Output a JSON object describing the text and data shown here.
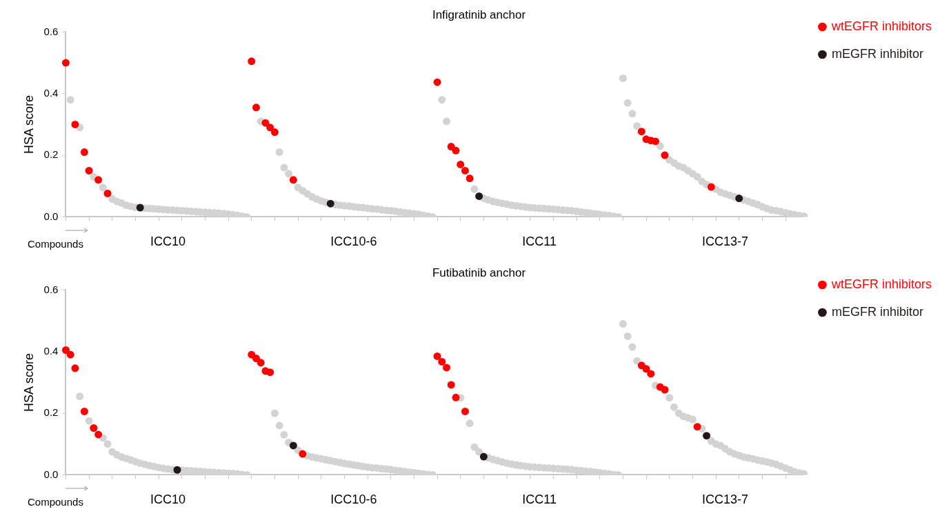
{
  "chart_data": [
    {
      "type": "scatter",
      "title": "Infigratinib anchor",
      "xlabel": "Compounds",
      "ylabel": "HSA score",
      "ylim": [
        0,
        0.6
      ],
      "categories": [
        null,
        null,
        null,
        null,
        null,
        null,
        null,
        null,
        null,
        null,
        null,
        null,
        null,
        null,
        null,
        null,
        null,
        null,
        null,
        null,
        null,
        null,
        "ICC10",
        null,
        null,
        null,
        null,
        null,
        null,
        null,
        null,
        null,
        null,
        null,
        null,
        null,
        null,
        null,
        null,
        null,
        null,
        null,
        null,
        null,
        null,
        null,
        null,
        null,
        null,
        null,
        null,
        null,
        null,
        null,
        null,
        null,
        null,
        null,
        null,
        null,
        null,
        null,
        "ICC10-6",
        null,
        null,
        null,
        null,
        null,
        null,
        null,
        null,
        null,
        null,
        null,
        null,
        null,
        null,
        null,
        null,
        null,
        null,
        null,
        null,
        null,
        null,
        null,
        null,
        null,
        null,
        null,
        null,
        null,
        null,
        null,
        null,
        null,
        null,
        null,
        null,
        null,
        null,
        null,
        "ICC11",
        null,
        null,
        null,
        null,
        null,
        null,
        null,
        null,
        null,
        null,
        null,
        null,
        null,
        null,
        null,
        null,
        null,
        null,
        null,
        null,
        null,
        null,
        null,
        null,
        null,
        null,
        null,
        null,
        null,
        null,
        null,
        null,
        null,
        null,
        null,
        null,
        null,
        null,
        null,
        "ICC13-7",
        null,
        null,
        null,
        null,
        null,
        null,
        null,
        null,
        null,
        null,
        null,
        null,
        null,
        null,
        null,
        null,
        null
      ],
      "yticks": [
        {
          "value": 0,
          "label": "0.0"
        },
        0.2,
        0.4,
        0.6
      ],
      "grid": false,
      "legend": "top right",
      "marker": "circle",
      "series": [
        {
          "color": "#d3d3d3",
          "values": [
            null,
            0.38,
            null,
            0.29,
            null,
            null,
            0.13,
            null,
            0.095,
            null,
            0.058,
            0.05,
            0.045,
            0.038,
            0.034,
            0.031,
            null,
            0.028,
            0.027,
            0.026,
            0.025,
            0.024,
            0.023,
            0.022,
            0.021,
            0.02,
            0.019,
            0.018,
            0.017,
            0.016,
            0.015,
            0.014,
            0.013,
            0.012,
            0.011,
            0.009,
            0.007,
            0.005,
            0.002,
            0,
            null,
            null,
            0.31,
            null,
            null,
            null,
            0.21,
            0.16,
            0.14,
            null,
            0.095,
            0.085,
            0.075,
            0.065,
            0.058,
            0.052,
            0.047,
            null,
            0.04,
            0.038,
            0.036,
            0.035,
            0.033,
            0.031,
            0.03,
            0.028,
            0.026,
            0.025,
            0.023,
            0.021,
            0.02,
            0.018,
            0.016,
            0.014,
            0.012,
            0.01,
            0.008,
            0.005,
            0.002,
            0,
            null,
            0.38,
            0.31,
            null,
            null,
            null,
            null,
            null,
            0.09,
            null,
            0.06,
            0.055,
            0.05,
            0.047,
            0.044,
            0.041,
            0.038,
            0.036,
            0.034,
            0.032,
            0.03,
            0.029,
            0.028,
            0.027,
            0.026,
            0.025,
            0.024,
            0.022,
            0.021,
            0.02,
            0.018,
            0.016,
            0.014,
            0.012,
            0.01,
            0.008,
            0.006,
            0.004,
            0.002,
            0,
            0.45,
            0.37,
            0.335,
            0.295,
            null,
            null,
            null,
            null,
            0.23,
            null,
            0.185,
            0.175,
            0.165,
            0.16,
            0.15,
            0.14,
            0.13,
            0.115,
            0.105,
            null,
            0.09,
            0.08,
            0.075,
            0.07,
            0.065,
            null,
            0.055,
            0.05,
            0.045,
            0.04,
            0.033,
            0.027,
            0.022,
            0.02,
            0.017,
            0.013,
            0.01,
            0.007,
            0.004,
            0.002
          ]
        },
        {
          "name": "wtEGFR inhibitors",
          "color": "#ff0000",
          "values": [
            0.5,
            null,
            0.3,
            null,
            0.21,
            0.15,
            null,
            0.12,
            null,
            0.076,
            null,
            null,
            null,
            null,
            null,
            null,
            null,
            null,
            null,
            null,
            null,
            null,
            null,
            null,
            null,
            null,
            null,
            null,
            null,
            null,
            null,
            null,
            null,
            null,
            null,
            null,
            null,
            null,
            null,
            null,
            0.505,
            0.355,
            null,
            0.305,
            0.29,
            0.275,
            null,
            null,
            null,
            0.12,
            null,
            null,
            null,
            null,
            null,
            null,
            null,
            null,
            null,
            null,
            null,
            null,
            null,
            null,
            null,
            null,
            null,
            null,
            null,
            null,
            null,
            null,
            null,
            null,
            null,
            null,
            null,
            null,
            null,
            null,
            0.437,
            null,
            null,
            0.228,
            0.215,
            0.17,
            0.15,
            0.125,
            null,
            null,
            null,
            null,
            null,
            null,
            null,
            null,
            null,
            null,
            null,
            null,
            null,
            null,
            null,
            null,
            null,
            null,
            null,
            null,
            null,
            null,
            null,
            null,
            null,
            null,
            null,
            null,
            null,
            null,
            null,
            null,
            null,
            null,
            null,
            null,
            0.277,
            0.252,
            0.248,
            0.245,
            null,
            0.2,
            null,
            null,
            null,
            null,
            null,
            null,
            null,
            null,
            null,
            0.097,
            null,
            null,
            null,
            null,
            null,
            null,
            null,
            null,
            null,
            null,
            null,
            null,
            null,
            null,
            null,
            null,
            null,
            null,
            null,
            null
          ]
        },
        {
          "name": "mEGFR inhibitor",
          "color": "#231815",
          "values": [
            null,
            null,
            null,
            null,
            null,
            null,
            null,
            null,
            null,
            null,
            null,
            null,
            null,
            null,
            null,
            null,
            0.03,
            null,
            null,
            null,
            null,
            null,
            null,
            null,
            null,
            null,
            null,
            null,
            null,
            null,
            null,
            null,
            null,
            null,
            null,
            null,
            null,
            null,
            null,
            null,
            null,
            null,
            null,
            null,
            null,
            null,
            null,
            null,
            null,
            null,
            null,
            null,
            null,
            null,
            null,
            null,
            null,
            0.043,
            null,
            null,
            null,
            null,
            null,
            null,
            null,
            null,
            null,
            null,
            null,
            null,
            null,
            null,
            null,
            null,
            null,
            null,
            null,
            null,
            null,
            null,
            null,
            null,
            null,
            null,
            null,
            null,
            null,
            null,
            null,
            0.067,
            null,
            null,
            null,
            null,
            null,
            null,
            null,
            null,
            null,
            null,
            null,
            null,
            null,
            null,
            null,
            null,
            null,
            null,
            null,
            null,
            null,
            null,
            null,
            null,
            null,
            null,
            null,
            null,
            null,
            null,
            null,
            null,
            null,
            null,
            null,
            null,
            null,
            null,
            null,
            null,
            null,
            null,
            null,
            null,
            null,
            null,
            null,
            null,
            null,
            null,
            null,
            null,
            null,
            null,
            null,
            0.06,
            null,
            null,
            null,
            null,
            null,
            null,
            null,
            null,
            null,
            null,
            null,
            null,
            null,
            null
          ]
        }
      ]
    },
    {
      "type": "scatter",
      "title": "Futibatinib anchor",
      "xlabel": "Compounds",
      "ylabel": "HSA score",
      "ylim": [
        0,
        0.6
      ],
      "categories": [
        null,
        null,
        null,
        null,
        null,
        null,
        null,
        null,
        null,
        null,
        null,
        null,
        null,
        null,
        null,
        null,
        null,
        null,
        null,
        null,
        null,
        null,
        "ICC10",
        null,
        null,
        null,
        null,
        null,
        null,
        null,
        null,
        null,
        null,
        null,
        null,
        null,
        null,
        null,
        null,
        null,
        null,
        null,
        null,
        null,
        null,
        null,
        null,
        null,
        null,
        null,
        null,
        null,
        null,
        null,
        null,
        null,
        null,
        null,
        null,
        null,
        null,
        null,
        "ICC10-6",
        null,
        null,
        null,
        null,
        null,
        null,
        null,
        null,
        null,
        null,
        null,
        null,
        null,
        null,
        null,
        null,
        null,
        null,
        null,
        null,
        null,
        null,
        null,
        null,
        null,
        null,
        null,
        null,
        null,
        null,
        null,
        null,
        null,
        null,
        null,
        null,
        null,
        null,
        null,
        "ICC11",
        null,
        null,
        null,
        null,
        null,
        null,
        null,
        null,
        null,
        null,
        null,
        null,
        null,
        null,
        null,
        null,
        null,
        null,
        null,
        null,
        null,
        null,
        null,
        null,
        null,
        null,
        null,
        null,
        null,
        null,
        null,
        null,
        null,
        null,
        null,
        null,
        null,
        null,
        null,
        "ICC13-7",
        null,
        null,
        null,
        null,
        null,
        null,
        null,
        null,
        null,
        null,
        null,
        null,
        null,
        null,
        null,
        null,
        null
      ],
      "yticks": [
        {
          "value": 0,
          "label": "0.0"
        },
        0.2,
        0.4,
        0.6
      ],
      "grid": false,
      "legend": "top right",
      "marker": "circle",
      "series": [
        {
          "color": "#d3d3d3",
          "values": [
            null,
            null,
            null,
            0.255,
            null,
            0.175,
            null,
            null,
            0.12,
            0.1,
            0.075,
            0.065,
            0.058,
            0.053,
            0.048,
            0.043,
            0.038,
            0.034,
            0.03,
            0.027,
            0.024,
            0.021,
            0.019,
            0.017,
            null,
            0.015,
            0.014,
            0.013,
            0.012,
            0.011,
            0.01,
            0.009,
            0.008,
            0.007,
            0.006,
            0.005,
            0.004,
            0.003,
            0.001,
            0,
            null,
            null,
            null,
            null,
            null,
            0.2,
            0.16,
            0.13,
            0.105,
            null,
            0.08,
            null,
            0.062,
            0.058,
            0.055,
            0.052,
            0.049,
            0.046,
            0.043,
            0.04,
            0.037,
            0.035,
            0.032,
            0.03,
            0.027,
            0.025,
            0.023,
            0.022,
            0.02,
            0.019,
            0.017,
            0.015,
            0.013,
            0.011,
            0.009,
            0.007,
            0.005,
            0.003,
            0.001,
            0,
            null,
            null,
            null,
            null,
            null,
            0.25,
            null,
            0.167,
            0.09,
            0.075,
            null,
            0.055,
            0.05,
            0.046,
            0.042,
            0.038,
            0.035,
            0.032,
            0.03,
            0.028,
            0.026,
            0.025,
            0.024,
            0.023,
            0.022,
            0.021,
            0.02,
            0.019,
            0.018,
            0.017,
            0.015,
            0.014,
            0.012,
            0.011,
            0.009,
            0.007,
            0.005,
            0.003,
            0.001,
            0,
            0.49,
            0.45,
            0.415,
            0.37,
            null,
            null,
            null,
            0.29,
            null,
            null,
            0.25,
            0.22,
            0.2,
            0.19,
            0.185,
            0.18,
            null,
            0.15,
            null,
            0.11,
            0.1,
            0.095,
            0.085,
            0.075,
            0.068,
            0.063,
            0.058,
            0.055,
            0.052,
            0.048,
            0.045,
            0.042,
            0.038,
            0.034,
            0.028,
            0.022,
            0.016,
            0.01,
            0.006,
            0.003
          ]
        },
        {
          "name": "wtEGFR inhibitors",
          "color": "#ff0000",
          "values": [
            0.405,
            0.39,
            0.346,
            null,
            0.206,
            null,
            0.152,
            0.131,
            null,
            null,
            null,
            null,
            null,
            null,
            null,
            null,
            null,
            null,
            null,
            null,
            null,
            null,
            null,
            null,
            null,
            null,
            null,
            null,
            null,
            null,
            null,
            null,
            null,
            null,
            null,
            null,
            null,
            null,
            null,
            null,
            0.39,
            0.378,
            0.364,
            0.337,
            0.333,
            null,
            null,
            null,
            null,
            null,
            null,
            0.068,
            null,
            null,
            null,
            null,
            null,
            null,
            null,
            null,
            null,
            null,
            null,
            null,
            null,
            null,
            null,
            null,
            null,
            null,
            null,
            null,
            null,
            null,
            null,
            null,
            null,
            null,
            null,
            null,
            0.385,
            0.367,
            0.348,
            0.292,
            0.251,
            null,
            0.206,
            null,
            null,
            null,
            null,
            null,
            null,
            null,
            null,
            null,
            null,
            null,
            null,
            null,
            null,
            null,
            null,
            null,
            null,
            null,
            null,
            null,
            null,
            null,
            null,
            null,
            null,
            null,
            null,
            null,
            null,
            null,
            null,
            null,
            null,
            null,
            null,
            null,
            0.355,
            0.344,
            0.328,
            null,
            0.285,
            0.276,
            null,
            null,
            null,
            null,
            null,
            null,
            0.156,
            null,
            null,
            null,
            null,
            null,
            null,
            null,
            null,
            null,
            null,
            null,
            null,
            null,
            null,
            null,
            null,
            null,
            null,
            null,
            null,
            null,
            null,
            null
          ]
        },
        {
          "name": "mEGFR inhibitor",
          "color": "#231815",
          "values": [
            null,
            null,
            null,
            null,
            null,
            null,
            null,
            null,
            null,
            null,
            null,
            null,
            null,
            null,
            null,
            null,
            null,
            null,
            null,
            null,
            null,
            null,
            null,
            null,
            0.016,
            null,
            null,
            null,
            null,
            null,
            null,
            null,
            null,
            null,
            null,
            null,
            null,
            null,
            null,
            null,
            null,
            null,
            null,
            null,
            null,
            null,
            null,
            null,
            null,
            0.095,
            null,
            null,
            null,
            null,
            null,
            null,
            null,
            null,
            null,
            null,
            null,
            null,
            null,
            null,
            null,
            null,
            null,
            null,
            null,
            null,
            null,
            null,
            null,
            null,
            null,
            null,
            null,
            null,
            null,
            null,
            null,
            null,
            null,
            null,
            null,
            null,
            null,
            null,
            null,
            null,
            0.059,
            null,
            null,
            null,
            null,
            null,
            null,
            null,
            null,
            null,
            null,
            null,
            null,
            null,
            null,
            null,
            null,
            null,
            null,
            null,
            null,
            null,
            null,
            null,
            null,
            null,
            null,
            null,
            null,
            null,
            null,
            null,
            null,
            null,
            null,
            null,
            null,
            null,
            null,
            null,
            null,
            null,
            null,
            null,
            null,
            null,
            null,
            null,
            0.127,
            null,
            null,
            null,
            null,
            null,
            null,
            null,
            null,
            null,
            null,
            null,
            null,
            null,
            null,
            null,
            null,
            null,
            null,
            null,
            null,
            null
          ]
        }
      ]
    }
  ]
}
